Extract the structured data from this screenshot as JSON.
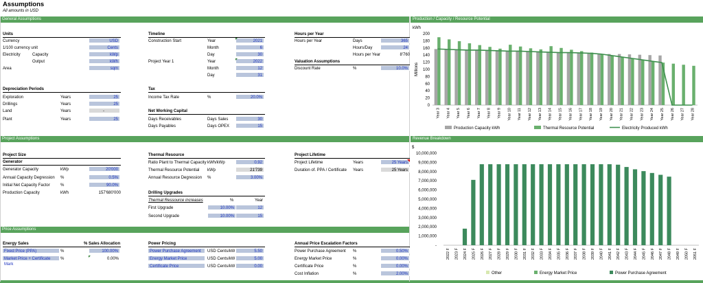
{
  "header": {
    "title": "Assumptions",
    "subtitle": "All amounts in USD"
  },
  "sections": {
    "general": "General Assumptions",
    "project": "Project Assumptions",
    "price": "Price Assumptions",
    "prod_chart": "Production / Capacity / Resource Potential",
    "rev_chart": "Revenue Breakdown"
  },
  "units": {
    "heading": "Units",
    "rows": [
      {
        "label": "Currency",
        "sub": "",
        "value": "USD"
      },
      {
        "label": "1/100 currency unit",
        "sub": "",
        "value": "Cents"
      },
      {
        "label": "Electricity",
        "sub": "Capacity",
        "value": "kWp"
      },
      {
        "label": "",
        "sub": "Output",
        "value": "kWh"
      },
      {
        "label": "Area",
        "sub": "",
        "value": "sqm"
      }
    ]
  },
  "timeline": {
    "heading": "Timeline",
    "rows": [
      {
        "label": "Construction Start",
        "unit": "Year",
        "value": "2021"
      },
      {
        "label": "",
        "unit": "Month",
        "value": "6"
      },
      {
        "label": "",
        "unit": "Day",
        "value": "30"
      },
      {
        "label": "Project Year 1",
        "unit": "Year",
        "value": "2022"
      },
      {
        "label": "",
        "unit": "Month",
        "value": "12"
      },
      {
        "label": "",
        "unit": "Day",
        "value": "31"
      }
    ]
  },
  "hours": {
    "heading": "Hours per Year",
    "label": "Hours per Year",
    "rows": [
      {
        "unit": "Days",
        "value": "365"
      },
      {
        "unit": "Hours/Day",
        "value": "24"
      },
      {
        "unit": "Hours per Year",
        "value": "8'760"
      }
    ]
  },
  "valuation": {
    "heading": "Valuation Assumptions",
    "label": "Discount Rate",
    "unit": "%",
    "value": "10.0%"
  },
  "depreciation": {
    "heading": "Depreciation Periods",
    "rows": [
      {
        "label": "Exploration",
        "unit": "Years",
        "value": "25"
      },
      {
        "label": "Drillings",
        "unit": "Years",
        "value": "25"
      },
      {
        "label": "Land",
        "unit": "Years",
        "value": "-"
      },
      {
        "label": "Plant",
        "unit": "Years",
        "value": "25"
      }
    ]
  },
  "tax": {
    "heading": "Tax",
    "label": "Income Tax Rate",
    "unit": "%",
    "value": "20.0%"
  },
  "nwc": {
    "heading": "Net Working Capital",
    "rows": [
      {
        "label": "Days Receivables",
        "unit": "Days Sales",
        "value": "30"
      },
      {
        "label": "Days Payables",
        "unit": "Days OPEX",
        "value": "15"
      }
    ]
  },
  "project_size": {
    "heading": "Project Size",
    "subheading": "Generator",
    "rows": [
      {
        "label": "Generator Capacity",
        "unit": "kWp",
        "value": "20'000"
      },
      {
        "label": "Annual Capacity Degression",
        "unit": "%",
        "value": "0.5%"
      },
      {
        "label": "Initial Net Capacity Factor",
        "unit": "%",
        "value": "90.0%"
      },
      {
        "label": "Production Capacity",
        "unit": "kWh",
        "value": "157'680'000"
      }
    ]
  },
  "thermal": {
    "heading": "Thermal Resource",
    "rows": [
      {
        "label": "Ratio Plant to Thermal Capacity",
        "unit": "kWh/kWp",
        "value": "0.92"
      },
      {
        "label": "Thermal Resource Potential",
        "unit": "kWp",
        "value": "21'739"
      },
      {
        "label": "Annual Resource Degression",
        "unit": "%",
        "value": "3.00%"
      }
    ]
  },
  "drilling": {
    "heading": "Drilling Upgrades",
    "col_label": "Thermal Ressource increases",
    "col_pct": "%",
    "col_year": "Year",
    "rows": [
      {
        "label": "First Upgrade",
        "pct": "10.00%",
        "year": "12"
      },
      {
        "label": "Second Upgrade",
        "pct": "10.00%",
        "year": "15"
      }
    ]
  },
  "lifetime": {
    "heading": "Project Lifetime",
    "rows": [
      {
        "label": "Project Lifetime",
        "unit": "Years",
        "value": "25 Years"
      },
      {
        "label": "Duration of. PPA / Certificate",
        "unit": "Years",
        "value": "25 Years"
      }
    ]
  },
  "energy_sales": {
    "heading": "Energy Sales",
    "alloc_header": "% Sales Allocation",
    "rows": [
      {
        "label": "Fixed Price (PPA)",
        "unit": "%",
        "value": "100.00%"
      },
      {
        "label": "Market Price + Certificate Mark",
        "unit": "%",
        "value": "0.00%"
      }
    ]
  },
  "power_pricing": {
    "heading": "Power Pricing",
    "rows": [
      {
        "label": "Power Purchase Agreement",
        "unit": "USD Cents/kW",
        "value": "5.50"
      },
      {
        "label": "Energy Market Price",
        "unit": "USD Cents/kW",
        "value": "5.00"
      },
      {
        "label": "Certificate Price",
        "unit": "USD Cents/kW",
        "value": "0.00"
      }
    ]
  },
  "escalation": {
    "heading": "Annual Price Escalation Factors",
    "rows": [
      {
        "label": "Power Purchase Agreement",
        "unit": "%",
        "value": "0.50%"
      },
      {
        "label": "Energy Market Price",
        "unit": "%",
        "value": "0.00%"
      },
      {
        "label": "Certificate Price",
        "unit": "%",
        "value": "0.00%"
      },
      {
        "label": "Cost Inflation",
        "unit": "%",
        "value": "2.00%"
      }
    ]
  },
  "colors": {
    "section": "#58a35c",
    "input_bg": "#b9c5dc",
    "input_text": "#1f35c0",
    "calc_bg": "#d9d9d9",
    "bar_gray": "#a6a6a6",
    "bar_green": "#6ab06e",
    "line_green": "#3f8f4f",
    "rev_green": "#3c8a5c"
  },
  "chart_data": [
    {
      "type": "bar",
      "unit_label": "kWh",
      "ylabel": "Millions",
      "ylim": [
        0,
        200
      ],
      "yticks": [
        0,
        20,
        40,
        60,
        80,
        100,
        120,
        140,
        160,
        180,
        200
      ],
      "categories": [
        "Year 3",
        "Year 4",
        "Year 5",
        "Year 6",
        "Year 7",
        "Year 8",
        "Year 9",
        "Year 10",
        "Year 11",
        "Year 12",
        "Year 13",
        "Year 14",
        "Year 15",
        "Year 16",
        "Year 17",
        "Year 18",
        "Year 19",
        "Year 20",
        "Year 21",
        "Year 22",
        "Year 23",
        "Year 24",
        "Year 25",
        "Year 26",
        "Year 27",
        "Year 28"
      ],
      "series": [
        {
          "name": "Production Capacity kWh",
          "kind": "bar",
          "values": [
            157,
            156,
            155,
            154,
            154,
            153,
            152,
            151,
            151,
            150,
            149,
            148,
            147,
            147,
            146,
            145,
            144,
            143,
            143,
            142,
            141,
            140,
            139,
            0,
            0,
            0
          ]
        },
        {
          "name": "Thermal Resource Potential",
          "kind": "bar",
          "values": [
            190,
            184,
            179,
            173,
            168,
            163,
            158,
            169,
            164,
            159,
            156,
            165,
            160,
            155,
            151,
            147,
            143,
            139,
            135,
            131,
            127,
            123,
            119,
            116,
            113,
            110
          ]
        },
        {
          "name": "Electricity Produced kWh",
          "kind": "line",
          "values": [
            157,
            156,
            155,
            154,
            154,
            153,
            152,
            151,
            151,
            150,
            149,
            148,
            147,
            147,
            146,
            145,
            143,
            139,
            135,
            131,
            127,
            123,
            119,
            0,
            0,
            0
          ]
        }
      ]
    },
    {
      "type": "bar",
      "unit_label": "$",
      "ylim": [
        0,
        10000000
      ],
      "yticks": [
        "-",
        "1,000,000",
        "2,000,000",
        "3,000,000",
        "4,000,000",
        "5,000,000",
        "6,000,000",
        "7,000,000",
        "8,000,000",
        "9,000,000",
        "10,000,000"
      ],
      "categories": [
        "2022 F",
        "2023 F",
        "2024 F",
        "2025 F",
        "2026 F",
        "2027 F",
        "2028 F",
        "2029 F",
        "2030 F",
        "2031 F",
        "2032 F",
        "2033 F",
        "2034 F",
        "2035 F",
        "2036 F",
        "2037 F",
        "2038 F",
        "2039 F",
        "2040 F",
        "2041 F",
        "2042 F",
        "2043 F",
        "2044 F",
        "2045 F",
        "2046 F",
        "2047 F",
        "2048 F",
        "2049 F",
        "2050 F",
        "2051 F"
      ],
      "series": [
        {
          "name": "Other",
          "values": [
            0,
            0,
            0,
            0,
            0,
            0,
            0,
            0,
            0,
            0,
            0,
            0,
            0,
            0,
            0,
            0,
            0,
            0,
            0,
            0,
            0,
            0,
            0,
            0,
            0,
            0,
            0,
            0,
            0,
            0
          ]
        },
        {
          "name": "Energy Market Price",
          "values": [
            0,
            0,
            0,
            0,
            0,
            0,
            0,
            0,
            0,
            0,
            0,
            0,
            0,
            0,
            0,
            0,
            0,
            0,
            0,
            0,
            0,
            0,
            0,
            0,
            0,
            0,
            0,
            0,
            0,
            0
          ]
        },
        {
          "name": "Power Purchase Agreement",
          "values": [
            0,
            0,
            1800000,
            7100000,
            8800000,
            8800000,
            8800000,
            8800000,
            8800000,
            8800000,
            8800000,
            8800000,
            8800000,
            8800000,
            8800000,
            8800000,
            8800000,
            8800000,
            8800000,
            8800000,
            8750000,
            8500000,
            8250000,
            8050000,
            7850000,
            7650000,
            7450000,
            0,
            0,
            0
          ]
        }
      ]
    }
  ]
}
